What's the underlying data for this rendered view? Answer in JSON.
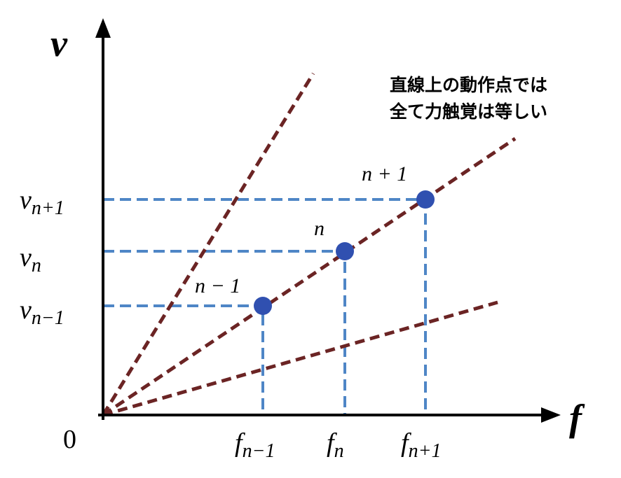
{
  "axes": {
    "y_label": "v",
    "x_label": "f",
    "origin": "0"
  },
  "y_ticks": [
    {
      "base": "v",
      "sub": "n+1"
    },
    {
      "base": "v",
      "sub": "n"
    },
    {
      "base": "v",
      "sub": "n−1"
    }
  ],
  "x_ticks": [
    {
      "base": "f",
      "sub": "n−1"
    },
    {
      "base": "f",
      "sub": "n"
    },
    {
      "base": "f",
      "sub": "n+1"
    }
  ],
  "points": [
    {
      "label": "n − 1"
    },
    {
      "label": "n"
    },
    {
      "label": "n + 1"
    }
  ],
  "annotation": [
    "直線上の動作点では",
    "全て力触覚は等しい"
  ]
}
